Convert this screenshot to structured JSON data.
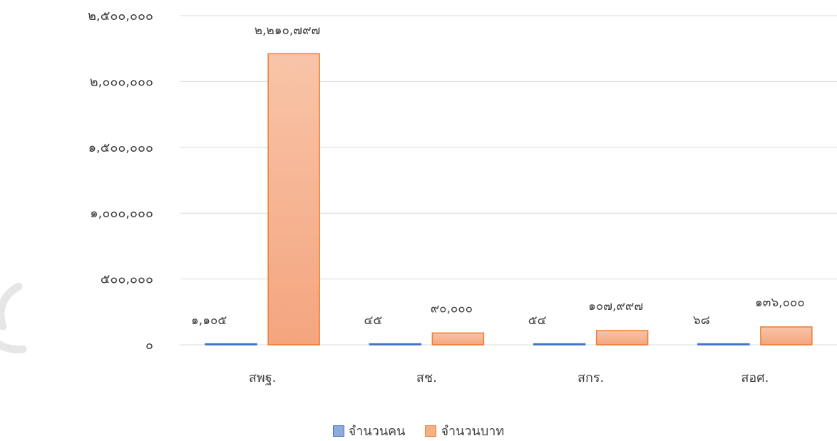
{
  "chart_data": {
    "type": "bar",
    "categories": [
      "สพฐ.",
      "สช.",
      "สกร.",
      "สอศ."
    ],
    "series": [
      {
        "name": "จำนวนคน",
        "values": [
          1105,
          45,
          54,
          68
        ],
        "labels": [
          "๑,๑๐๕",
          "๔๕",
          "๕๔",
          "๖๘"
        ],
        "color": "#8faadc",
        "border": "#4472c4"
      },
      {
        "name": "จำนวนบาท",
        "values": [
          2210797,
          90000,
          107997,
          136000
        ],
        "labels": [
          "๒,๒๑๐,๗๙๗",
          "๙๐,๐๐๐",
          "๑๐๗,๙๙๗",
          "๑๓๖,๐๐๐"
        ],
        "color": "#f4b183",
        "border": "#ed7d31"
      }
    ],
    "ylim": [
      0,
      2500000
    ],
    "yticks": [
      {
        "value": 0,
        "label": "๐"
      },
      {
        "value": 500000,
        "label": "๕๐๐,๐๐๐"
      },
      {
        "value": 1000000,
        "label": "๑,๐๐๐,๐๐๐"
      },
      {
        "value": 1500000,
        "label": "๑,๕๐๐,๐๐๐"
      },
      {
        "value": 2000000,
        "label": "๒,๐๐๐,๐๐๐"
      },
      {
        "value": 2500000,
        "label": "๒,๕๐๐,๐๐๐"
      }
    ],
    "grid": true,
    "legend_position": "bottom"
  }
}
